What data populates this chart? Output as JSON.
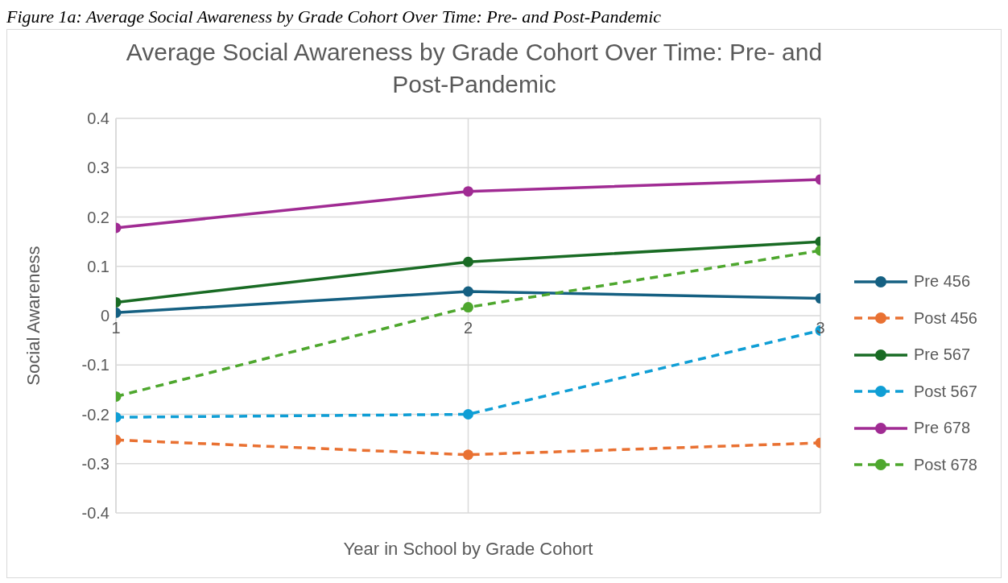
{
  "chart_data": {
    "type": "line",
    "title": "Average Social Awareness by Grade Cohort Over Time: Pre- and Post-Pandemic",
    "xlabel": "Year in School by Grade Cohort",
    "ylabel": "Social Awareness",
    "annotations": [
      "Figure 1a: Average Social Awareness by Grade Cohort Over Time: Pre- and Post-Pandemic"
    ],
    "x": [
      1,
      2,
      3
    ],
    "xlim": [
      1,
      3
    ],
    "xticks": [
      1,
      2,
      3
    ],
    "ylim": [
      -0.4,
      0.4
    ],
    "yticks": [
      -0.4,
      -0.3,
      -0.2,
      -0.1,
      0,
      0.1,
      0.2,
      0.3,
      0.4
    ],
    "grid": true,
    "legend": "right",
    "marker": "circle",
    "series": [
      {
        "name": "Pre 456",
        "color": "#156082",
        "line_style": "solid",
        "values": [
          0.006,
          0.049,
          0.035
        ]
      },
      {
        "name": "Post 456",
        "color": "#e97132",
        "line_style": "dashed",
        "values": [
          -0.252,
          -0.282,
          -0.258
        ]
      },
      {
        "name": "Pre 567",
        "color": "#196b24",
        "line_style": "solid",
        "values": [
          0.027,
          0.109,
          0.15
        ]
      },
      {
        "name": "Post 567",
        "color": "#0f9ed5",
        "line_style": "dashed",
        "values": [
          -0.206,
          -0.2,
          -0.03
        ]
      },
      {
        "name": "Pre 678",
        "color": "#a02b93",
        "line_style": "solid",
        "values": [
          0.178,
          0.252,
          0.276
        ]
      },
      {
        "name": "Post 678",
        "color": "#4ea72e",
        "line_style": "dashed",
        "values": [
          -0.164,
          0.017,
          0.132
        ]
      }
    ]
  }
}
